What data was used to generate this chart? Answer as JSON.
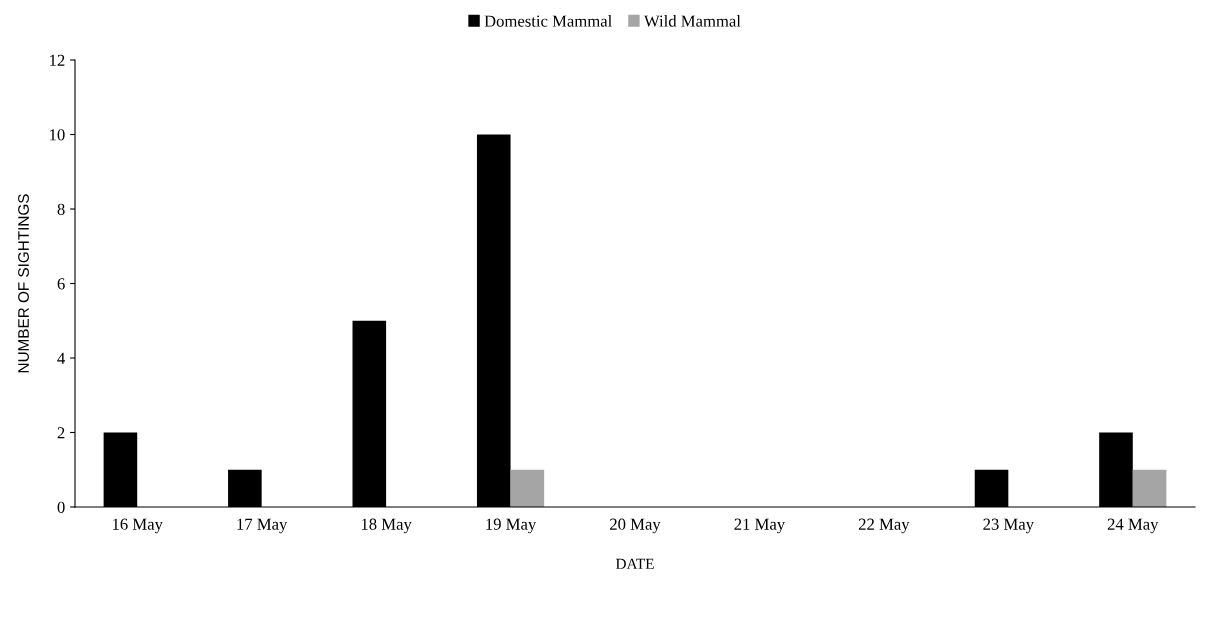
{
  "chart_data": {
    "type": "bar",
    "xlabel": "DATE",
    "ylabel": "NUMBER OF SIGHTINGS",
    "categories": [
      "16 May",
      "17 May",
      "18 May",
      "19 May",
      "20 May",
      "21 May",
      "22 May",
      "23 May",
      "24 May"
    ],
    "series": [
      {
        "name": "Domestic Mammal",
        "color": "#000000",
        "values": [
          2,
          1,
          5,
          10,
          0,
          0,
          0,
          1,
          2
        ]
      },
      {
        "name": "Wild Mammal",
        "color": "#a5a5a5",
        "values": [
          0,
          0,
          0,
          1,
          0,
          0,
          0,
          0,
          1
        ]
      }
    ],
    "ylim": [
      0,
      12
    ],
    "yticks": [
      0,
      2,
      4,
      6,
      8,
      10,
      12
    ],
    "grid": false,
    "legend": "top"
  }
}
